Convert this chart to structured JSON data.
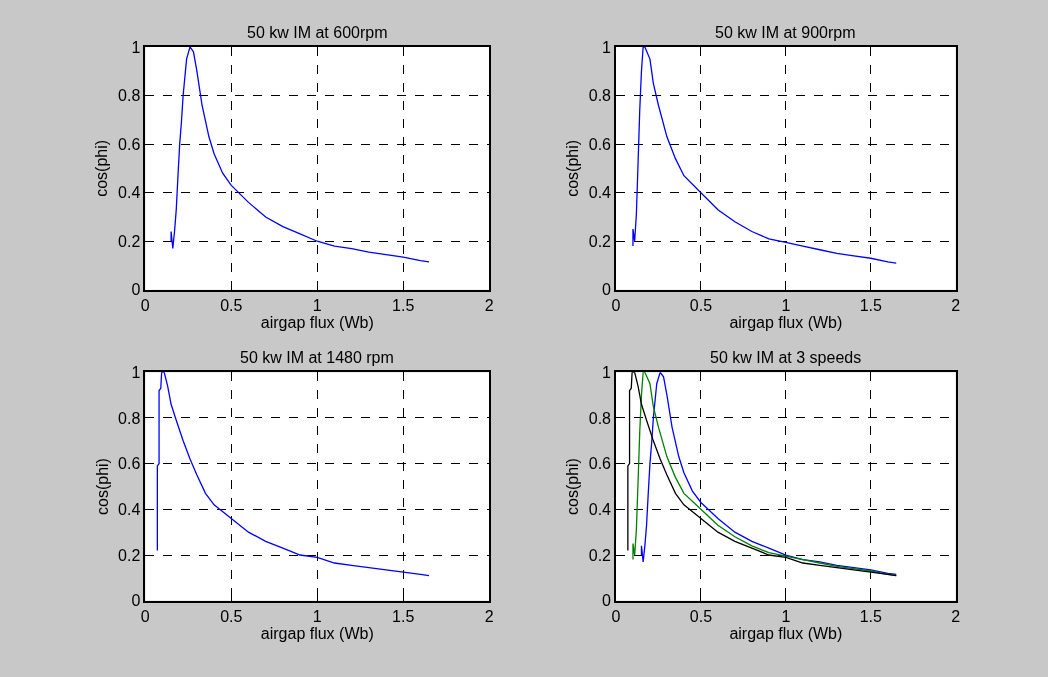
{
  "chart_data": [
    {
      "type": "line",
      "title": "50 kw IM at 600rpm",
      "xlabel": "airgap flux (Wb)",
      "ylabel": "cos(phi)",
      "xlim": [
        0,
        2
      ],
      "xticks": [
        0,
        0.5,
        1,
        1.5,
        2
      ],
      "ylim": [
        0,
        1
      ],
      "yticks": [
        0,
        0.2,
        0.4,
        0.6,
        0.8,
        1
      ],
      "grid": true,
      "line_style": "solid",
      "series": [
        {
          "color": "#0000ff",
          "x": [
            0.15,
            0.15,
            0.16,
            0.17,
            0.18,
            0.19,
            0.2,
            0.21,
            0.22,
            0.24,
            0.26,
            0.28,
            0.3,
            0.33,
            0.37,
            0.4,
            0.45,
            0.5,
            0.6,
            0.7,
            0.8,
            0.9,
            1.0,
            1.1,
            1.2,
            1.3,
            1.4,
            1.5,
            1.6,
            1.65
          ],
          "values": [
            0.2,
            0.24,
            0.17,
            0.24,
            0.33,
            0.47,
            0.6,
            0.69,
            0.8,
            0.95,
            1.0,
            0.98,
            0.9,
            0.76,
            0.63,
            0.56,
            0.48,
            0.43,
            0.36,
            0.3,
            0.26,
            0.23,
            0.2,
            0.18,
            0.17,
            0.155,
            0.145,
            0.135,
            0.12,
            0.115
          ]
        }
      ]
    },
    {
      "type": "line",
      "title": "50 kw IM at 900rpm",
      "xlabel": "airgap flux (Wb)",
      "ylabel": "cos(phi)",
      "xlim": [
        0,
        2
      ],
      "xticks": [
        0,
        0.5,
        1,
        1.5,
        2
      ],
      "ylim": [
        0,
        1
      ],
      "yticks": [
        0,
        0.2,
        0.4,
        0.6,
        0.8,
        1
      ],
      "grid": true,
      "line_style": "solid",
      "series": [
        {
          "color": "#0000ff",
          "x": [
            0.1,
            0.1,
            0.11,
            0.12,
            0.13,
            0.14,
            0.15,
            0.16,
            0.17,
            0.2,
            0.22,
            0.25,
            0.3,
            0.35,
            0.4,
            0.5,
            0.6,
            0.7,
            0.8,
            0.9,
            1.0,
            1.1,
            1.2,
            1.3,
            1.4,
            1.5,
            1.6,
            1.65
          ],
          "values": [
            0.18,
            0.25,
            0.2,
            0.31,
            0.52,
            0.74,
            0.9,
            1.0,
            1.0,
            0.95,
            0.85,
            0.76,
            0.63,
            0.54,
            0.47,
            0.4,
            0.33,
            0.28,
            0.24,
            0.21,
            0.195,
            0.18,
            0.165,
            0.15,
            0.14,
            0.13,
            0.115,
            0.11
          ]
        }
      ]
    },
    {
      "type": "line",
      "title": "50 kw IM at 1480 rpm",
      "xlabel": "airgap flux (Wb)",
      "ylabel": "cos(phi)",
      "xlim": [
        0,
        2
      ],
      "xticks": [
        0,
        0.5,
        1,
        1.5,
        2
      ],
      "ylim": [
        0,
        1
      ],
      "yticks": [
        0,
        0.2,
        0.4,
        0.6,
        0.8,
        1
      ],
      "grid": true,
      "line_style": "solid",
      "series": [
        {
          "color": "#0000ff",
          "x": [
            0.07,
            0.07,
            0.08,
            0.08,
            0.09,
            0.095,
            0.11,
            0.13,
            0.15,
            0.18,
            0.22,
            0.26,
            0.3,
            0.35,
            0.4,
            0.5,
            0.6,
            0.7,
            0.8,
            0.9,
            1.0,
            1.1,
            1.2,
            1.3,
            1.4,
            1.5,
            1.6,
            1.65
          ],
          "values": [
            0.22,
            0.59,
            0.6,
            0.92,
            0.93,
            1.0,
            1.0,
            0.94,
            0.86,
            0.79,
            0.7,
            0.62,
            0.55,
            0.47,
            0.42,
            0.36,
            0.3,
            0.26,
            0.23,
            0.2,
            0.19,
            0.165,
            0.155,
            0.145,
            0.135,
            0.125,
            0.115,
            0.11
          ]
        }
      ]
    },
    {
      "type": "line",
      "title": "50 kw IM at 3 speeds",
      "xlabel": "airgap flux (Wb)",
      "ylabel": "cos(phi)",
      "xlim": [
        0,
        2
      ],
      "xticks": [
        0,
        0.5,
        1,
        1.5,
        2
      ],
      "ylim": [
        0,
        1
      ],
      "yticks": [
        0,
        0.2,
        0.4,
        0.6,
        0.8,
        1
      ],
      "grid": true,
      "line_style": "solid",
      "series": [
        {
          "color": "#0000ff",
          "x": [
            0.15,
            0.15,
            0.16,
            0.17,
            0.18,
            0.19,
            0.2,
            0.21,
            0.22,
            0.24,
            0.26,
            0.28,
            0.3,
            0.33,
            0.37,
            0.4,
            0.45,
            0.5,
            0.6,
            0.7,
            0.8,
            0.9,
            1.0,
            1.1,
            1.2,
            1.3,
            1.4,
            1.5,
            1.6,
            1.65
          ],
          "values": [
            0.2,
            0.24,
            0.17,
            0.24,
            0.33,
            0.47,
            0.6,
            0.69,
            0.8,
            0.95,
            1.0,
            0.98,
            0.9,
            0.76,
            0.63,
            0.56,
            0.48,
            0.43,
            0.36,
            0.3,
            0.26,
            0.23,
            0.2,
            0.18,
            0.17,
            0.155,
            0.145,
            0.135,
            0.12,
            0.115
          ]
        },
        {
          "color": "#008000",
          "x": [
            0.1,
            0.1,
            0.11,
            0.12,
            0.13,
            0.14,
            0.15,
            0.16,
            0.17,
            0.2,
            0.22,
            0.25,
            0.3,
            0.35,
            0.4,
            0.5,
            0.6,
            0.7,
            0.8,
            0.9,
            1.0,
            1.1,
            1.2,
            1.3,
            1.4,
            1.5,
            1.6,
            1.65
          ],
          "values": [
            0.18,
            0.25,
            0.2,
            0.31,
            0.52,
            0.74,
            0.9,
            1.0,
            1.0,
            0.95,
            0.85,
            0.76,
            0.63,
            0.54,
            0.47,
            0.4,
            0.33,
            0.28,
            0.24,
            0.21,
            0.195,
            0.18,
            0.165,
            0.15,
            0.14,
            0.13,
            0.115,
            0.11
          ]
        },
        {
          "color": "#000000",
          "x": [
            0.07,
            0.07,
            0.08,
            0.08,
            0.09,
            0.095,
            0.11,
            0.13,
            0.15,
            0.18,
            0.22,
            0.26,
            0.3,
            0.35,
            0.4,
            0.5,
            0.6,
            0.7,
            0.8,
            0.9,
            1.0,
            1.1,
            1.2,
            1.3,
            1.4,
            1.5,
            1.6,
            1.65
          ],
          "values": [
            0.22,
            0.59,
            0.6,
            0.92,
            0.93,
            1.0,
            1.0,
            0.94,
            0.86,
            0.79,
            0.7,
            0.62,
            0.55,
            0.47,
            0.42,
            0.36,
            0.3,
            0.26,
            0.23,
            0.2,
            0.19,
            0.165,
            0.155,
            0.145,
            0.135,
            0.125,
            0.115,
            0.11
          ]
        }
      ]
    }
  ]
}
